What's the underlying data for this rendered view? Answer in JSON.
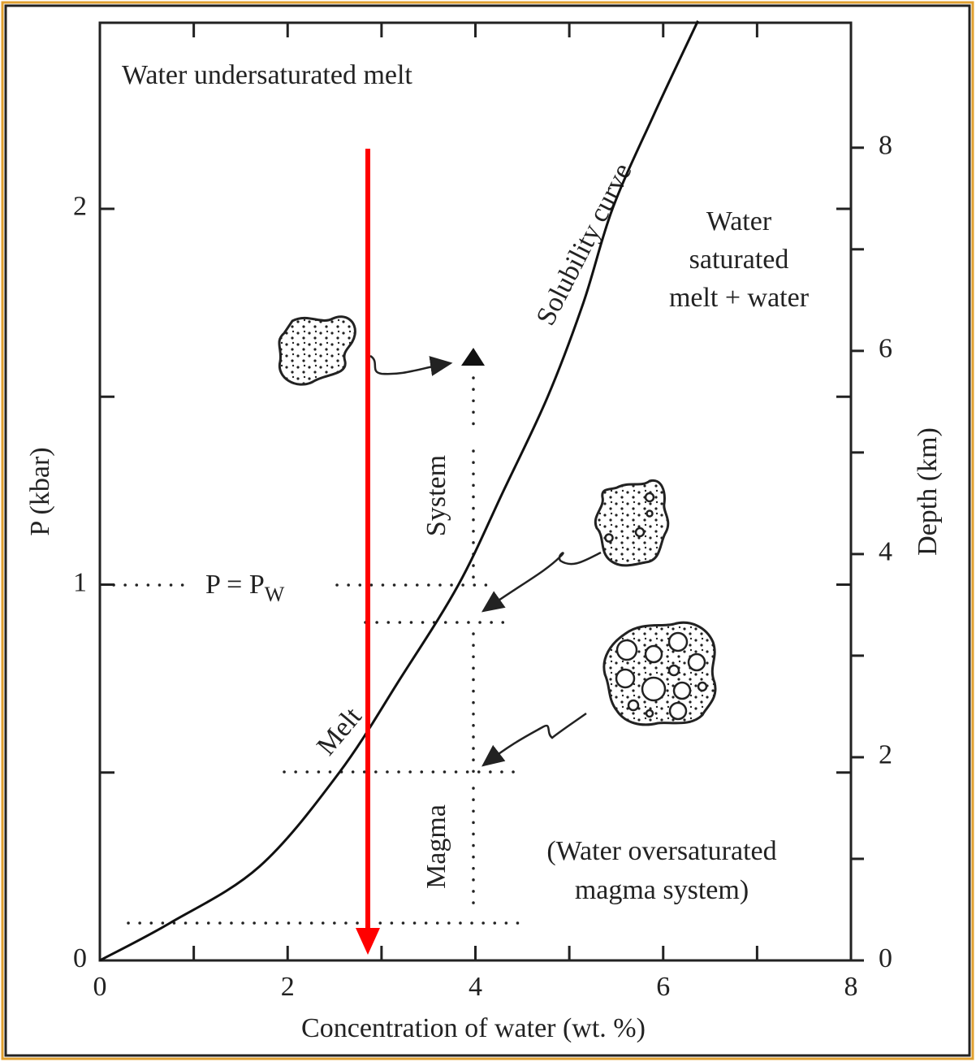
{
  "chart_data": {
    "type": "line",
    "x_label": "Concentration of water (wt. %)",
    "y_label": "P (kbar)",
    "y2_label": "Depth (km)",
    "x": [
      0,
      0.75,
      1.7,
      2.55,
      3.2,
      3.82,
      4.3,
      4.77,
      5.15,
      5.46,
      5.9,
      6.37
    ],
    "series": [
      {
        "name": "Solubility curve",
        "color": "#111111",
        "values": [
          0,
          0.1,
          0.25,
          0.5,
          0.75,
          1,
          1.25,
          1.5,
          1.75,
          2,
          2.25,
          2.5
        ]
      }
    ],
    "xlim": [
      0,
      8
    ],
    "xticks": [
      0,
      2,
      4,
      6,
      8
    ],
    "xminor_ticks": [
      1,
      3,
      5,
      7
    ],
    "ylim": [
      0,
      2.495
    ],
    "yticks": [
      0,
      1,
      2
    ],
    "yminor_ticks": [
      0.5,
      1.5
    ],
    "y2lim": [
      0,
      9.23
    ],
    "y2ticks": [
      0,
      2,
      4,
      6,
      8
    ],
    "y2minor_ticks": [
      1,
      3,
      5,
      7
    ],
    "annotations": [
      {
        "text": "Water undersaturated melt"
      },
      {
        "lines": [
          "Water",
          "saturated",
          "melt + water"
        ]
      },
      {
        "text": "System"
      },
      {
        "text": "P = P",
        "subscript": "W"
      },
      {
        "text": "Melt"
      },
      {
        "text": "Magma"
      },
      {
        "lines": [
          "(Water oversaturated",
          "magma system)"
        ]
      }
    ]
  }
}
